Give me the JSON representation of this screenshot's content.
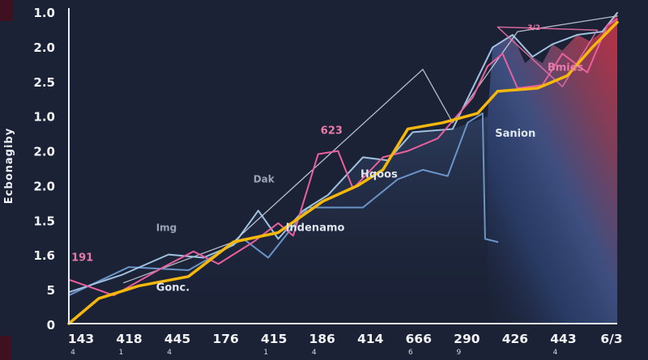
{
  "colors": {
    "background": "#1b2236",
    "axis": "#e9edf5",
    "tick_text": "#f2f4f8",
    "corner_accent": "#3f1020"
  },
  "y_axis": {
    "title": "Ecbonagiby",
    "tick_labels": [
      "1.0",
      "2.0",
      "2.5",
      "1.0",
      "2.0",
      "2.0",
      "1.5",
      "1.6",
      "5",
      "0"
    ]
  },
  "x_axis": {
    "tick_labels": [
      "143",
      "418",
      "445",
      "176",
      "415",
      "186",
      "414",
      "666",
      "290",
      "426",
      "443",
      "6/3"
    ],
    "sub_labels": [
      "4",
      "1",
      "4",
      "",
      "1",
      "4",
      "",
      "6",
      "9",
      "",
      "4",
      ""
    ]
  },
  "chart_data": {
    "type": "line",
    "title": "",
    "xlabel": "",
    "ylabel": "Ecbonagiby",
    "xlim": [
      0,
      11
    ],
    "ylim": [
      0,
      10
    ],
    "grid": false,
    "legend": "none",
    "gradients": {
      "mid": {
        "dir": [
          0,
          0,
          0,
          1
        ],
        "stops": [
          [
            0,
            "#5f86c8",
            0.26
          ],
          [
            1,
            "#1b2236",
            0
          ]
        ]
      },
      "right": {
        "dir": [
          0,
          1,
          0.85,
          0
        ],
        "stops": [
          [
            0,
            "#1b2236",
            0.12
          ],
          [
            0.3,
            "#31497f",
            0.6
          ],
          [
            0.55,
            "#45568c",
            0.85
          ],
          [
            0.8,
            "#83405c",
            0.95
          ],
          [
            1,
            "#b03449",
            0.97
          ]
        ]
      }
    },
    "areas": [
      {
        "name": "mid-fill-area",
        "gradient": "mid",
        "points": [
          [
            0,
            1.0
          ],
          [
            1.06,
            1.55
          ],
          [
            2.0,
            2.2
          ],
          [
            2.7,
            2.1
          ],
          [
            3.3,
            2.5
          ],
          [
            3.8,
            3.6
          ],
          [
            4.2,
            2.7
          ],
          [
            4.7,
            3.6
          ],
          [
            5.2,
            4.1
          ],
          [
            5.9,
            5.3
          ],
          [
            6.4,
            5.2
          ],
          [
            6.9,
            6.1
          ],
          [
            7.7,
            6.2
          ],
          [
            8.4,
            6.6
          ]
        ]
      },
      {
        "name": "right-gradient-mountain",
        "gradient": "right",
        "points": [
          [
            8.4,
            6.6
          ],
          [
            8.5,
            8.8
          ],
          [
            8.9,
            9.2
          ],
          [
            9.15,
            8.3
          ],
          [
            9.3,
            8.5
          ],
          [
            9.5,
            8.3
          ],
          [
            9.7,
            8.9
          ],
          [
            9.9,
            8.7
          ],
          [
            10.2,
            9.2
          ],
          [
            10.45,
            9.0
          ],
          [
            10.7,
            9.3
          ],
          [
            11,
            9.9
          ]
        ]
      }
    ],
    "series": [
      {
        "name": "white-ghost-line",
        "color": "#dde4ee",
        "width": 1.3,
        "opacity": 0.8,
        "points": [
          [
            1.1,
            1.3
          ],
          [
            3.3,
            2.6
          ],
          [
            7.1,
            8.1
          ],
          [
            7.7,
            6.4
          ],
          [
            9.0,
            9.3
          ],
          [
            11,
            9.8
          ]
        ]
      },
      {
        "name": "steel-blue-line",
        "color": "#6f9ad0",
        "width": 2,
        "opacity": 0.95,
        "points": [
          [
            0,
            0.9
          ],
          [
            1.2,
            1.8
          ],
          [
            2.4,
            1.7
          ],
          [
            3.5,
            2.7
          ],
          [
            4.0,
            2.1
          ],
          [
            4.8,
            3.7
          ],
          [
            5.9,
            3.7
          ],
          [
            6.6,
            4.6
          ],
          [
            7.1,
            4.9
          ],
          [
            7.6,
            4.7
          ],
          [
            8.0,
            6.4
          ],
          [
            8.3,
            6.7
          ],
          [
            8.35,
            2.7
          ],
          [
            8.6,
            2.6
          ]
        ]
      },
      {
        "name": "cyan-line",
        "color": "#a8cbe8",
        "width": 2,
        "opacity": 0.95,
        "points": [
          [
            0,
            1.0
          ],
          [
            1.06,
            1.55
          ],
          [
            2.0,
            2.2
          ],
          [
            2.7,
            2.1
          ],
          [
            3.3,
            2.5
          ],
          [
            3.8,
            3.6
          ],
          [
            4.2,
            2.7
          ],
          [
            4.7,
            3.6
          ],
          [
            5.2,
            4.1
          ],
          [
            5.9,
            5.3
          ],
          [
            6.4,
            5.2
          ],
          [
            6.9,
            6.1
          ],
          [
            7.7,
            6.2
          ],
          [
            8.1,
            7.5
          ],
          [
            8.5,
            8.8
          ],
          [
            8.9,
            9.2
          ],
          [
            9.3,
            8.5
          ],
          [
            9.7,
            8.9
          ],
          [
            10.2,
            9.2
          ],
          [
            10.7,
            9.3
          ],
          [
            11,
            9.9
          ]
        ]
      },
      {
        "name": "pink-line",
        "color": "#ea5f9d",
        "width": 2,
        "opacity": 1,
        "points": [
          [
            0,
            1.4
          ],
          [
            0.9,
            0.9
          ],
          [
            1.9,
            1.8
          ],
          [
            2.5,
            2.3
          ],
          [
            3.0,
            1.9
          ],
          [
            3.7,
            2.6
          ],
          [
            4.2,
            3.2
          ],
          [
            4.5,
            2.8
          ],
          [
            5.0,
            5.4
          ],
          [
            5.4,
            5.5
          ],
          [
            5.7,
            4.3
          ],
          [
            6.3,
            5.3
          ],
          [
            6.8,
            5.5
          ],
          [
            7.4,
            5.9
          ],
          [
            8.1,
            7.2
          ],
          [
            8.4,
            8.2
          ],
          [
            8.7,
            8.6
          ],
          [
            9.0,
            7.5
          ],
          [
            9.5,
            7.6
          ],
          [
            9.9,
            8.6
          ],
          [
            10.4,
            8.0
          ],
          [
            10.8,
            9.5
          ],
          [
            11,
            9.7
          ]
        ]
      },
      {
        "name": "pink-polygon-outline",
        "color": "#e86fa5",
        "width": 1.5,
        "opacity": 0.9,
        "points": [
          [
            8.6,
            9.45
          ],
          [
            10.6,
            9.35
          ],
          [
            9.9,
            7.55
          ],
          [
            8.6,
            9.45
          ]
        ]
      },
      {
        "name": "gold-line",
        "color": "#f7b80c",
        "width": 3.5,
        "opacity": 1,
        "points": [
          [
            0,
            0
          ],
          [
            0.6,
            0.8
          ],
          [
            1.4,
            1.2
          ],
          [
            2.4,
            1.5
          ],
          [
            3.3,
            2.6
          ],
          [
            4.2,
            2.9
          ],
          [
            5.1,
            3.9
          ],
          [
            5.8,
            4.4
          ],
          [
            6.3,
            4.9
          ],
          [
            6.8,
            6.2
          ],
          [
            7.5,
            6.4
          ],
          [
            8.2,
            6.7
          ],
          [
            8.6,
            7.4
          ],
          [
            9.4,
            7.5
          ],
          [
            10.0,
            7.9
          ],
          [
            10.5,
            8.8
          ],
          [
            11,
            9.6
          ]
        ]
      }
    ],
    "annotations": [
      {
        "text": "191",
        "x": 0.05,
        "y": 2.0,
        "color": "#e87aa8",
        "size": 13
      },
      {
        "text": "Img",
        "x": 1.75,
        "y": 2.95,
        "color": "#9aa3b5",
        "size": 12
      },
      {
        "text": "Gonc.",
        "x": 1.75,
        "y": 1.05,
        "color": "#dfe5ef",
        "size": 13
      },
      {
        "text": "Dak",
        "x": 3.7,
        "y": 4.5,
        "color": "#9aa3b5",
        "size": 12
      },
      {
        "text": "Indenamo",
        "x": 4.35,
        "y": 2.95,
        "color": "#dfe5ef",
        "size": 13
      },
      {
        "text": "623",
        "x": 5.05,
        "y": 6.05,
        "color": "#e87aa8",
        "size": 13
      },
      {
        "text": "Hqoos",
        "x": 5.85,
        "y": 4.65,
        "color": "#dfe5ef",
        "size": 13
      },
      {
        "text": "Sanion",
        "x": 8.55,
        "y": 5.95,
        "color": "#dfe5ef",
        "size": 13
      },
      {
        "text": "Bmies",
        "x": 9.6,
        "y": 8.05,
        "color": "#e87aa8",
        "size": 13
      },
      {
        "text": "3/2",
        "x": 9.2,
        "y": 9.35,
        "color": "#e87aa8",
        "size": 9
      }
    ]
  }
}
